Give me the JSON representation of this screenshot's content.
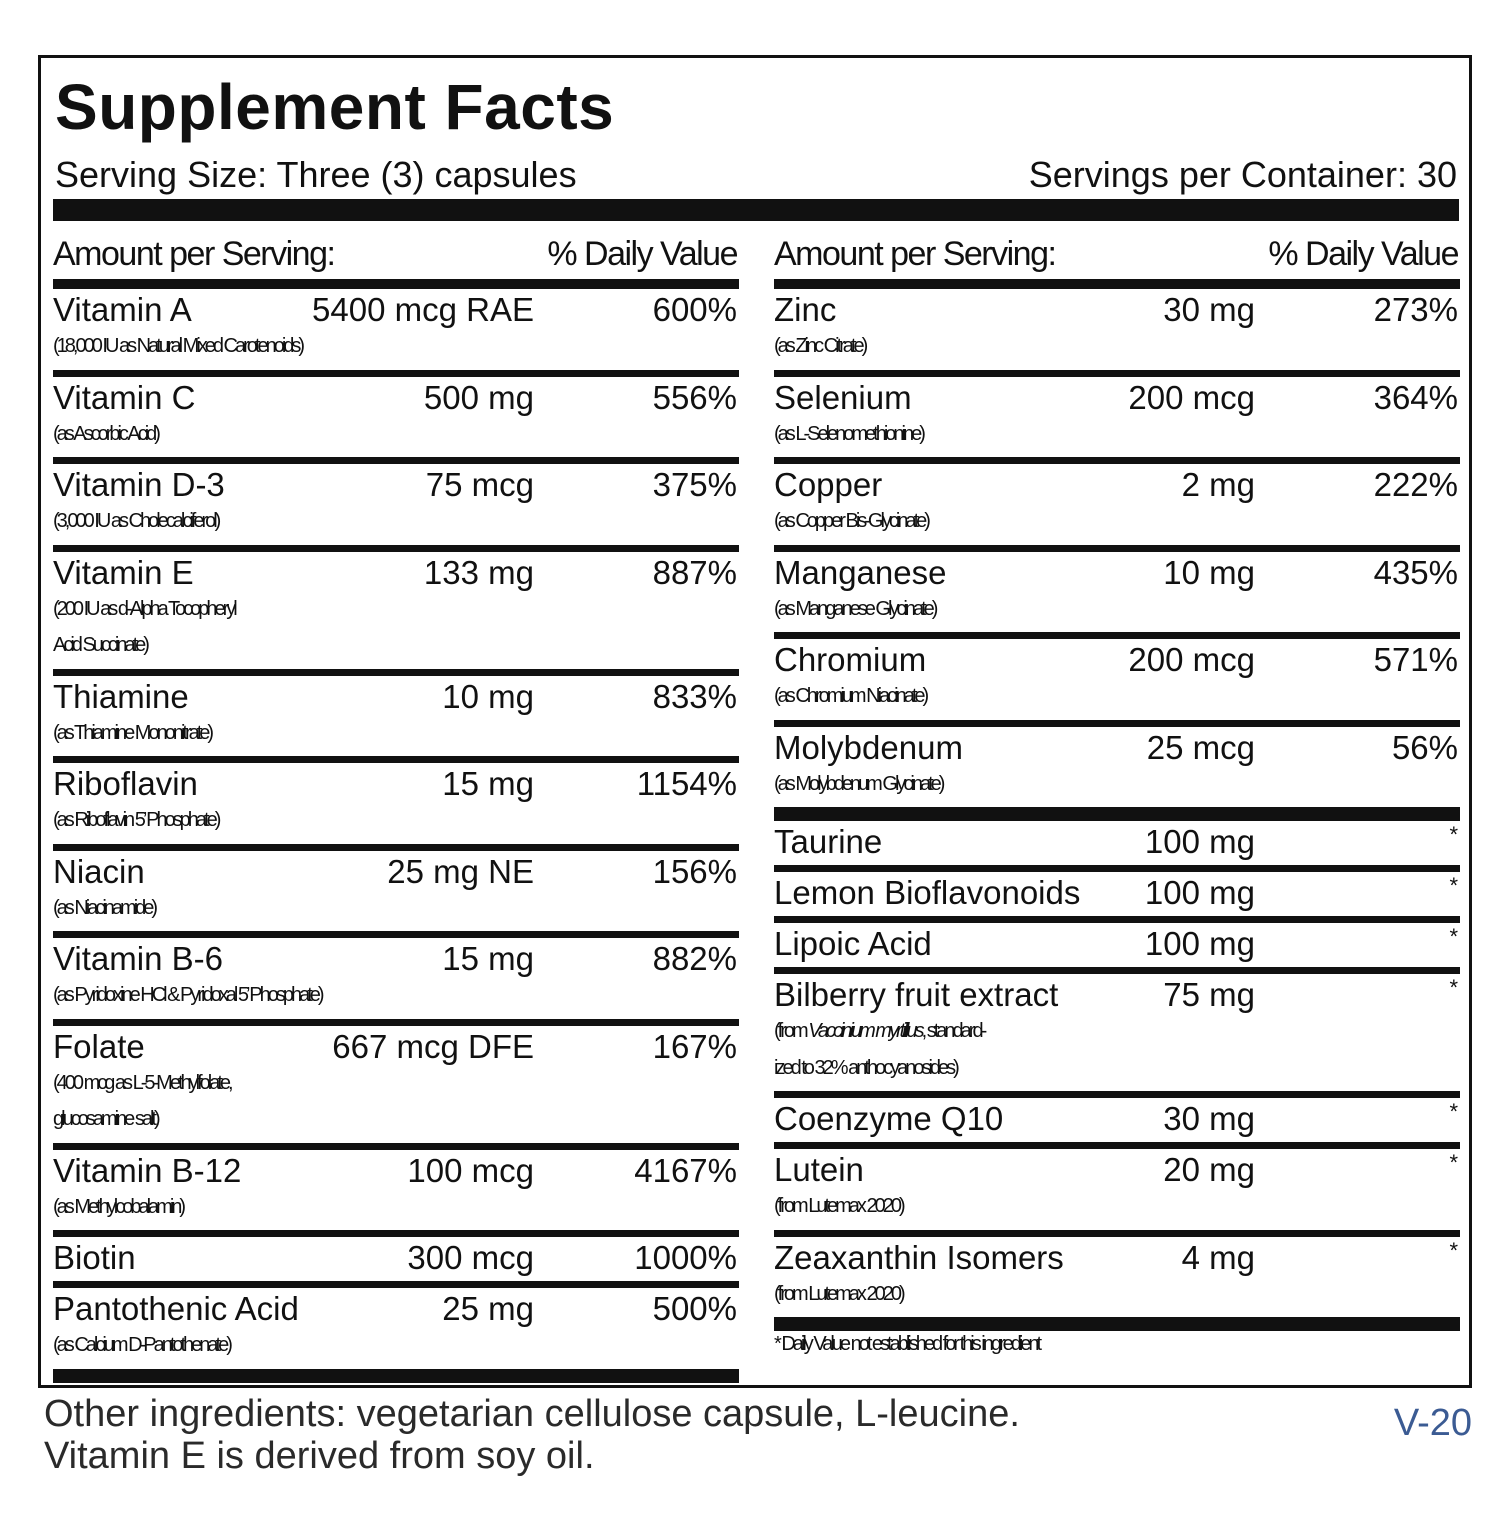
{
  "title": "Supplement Facts",
  "serving_size": "Serving Size: Three (3) capsules",
  "servings_per_container": "Servings per Container: 30",
  "columns": [
    {
      "header": {
        "amount": "Amount per Serving:",
        "dv": "% Daily Value"
      },
      "groups": [
        {
          "rows": [
            {
              "name": "Vitamin A",
              "amount": "5400 mcg RAE",
              "dv": "600%",
              "detail": [
                "(18,000 IU as Natural Mixed Carotenoids)"
              ]
            },
            {
              "name": "Vitamin C",
              "amount": "500 mg",
              "dv": "556%",
              "detail": [
                "(as Ascorbic Acid)"
              ]
            },
            {
              "name": "Vitamin D-3",
              "amount": "75 mcg",
              "dv": "375%",
              "detail": [
                "(3,000 IU as Cholecalciferol)"
              ]
            },
            {
              "name": "Vitamin E",
              "amount": "133 mg",
              "dv": "887%",
              "detail": [
                "(200 IU as d-Alpha Tocopheryl",
                "Acid Succinate)"
              ]
            },
            {
              "name": "Thiamine",
              "amount": "10 mg",
              "dv": "833%",
              "detail": [
                "(as Thiamine Mononitrate)"
              ]
            },
            {
              "name": "Riboflavin",
              "amount": "15 mg",
              "dv": "1154%",
              "detail": [
                "(as Riboflavin 5’ Phosphate)"
              ]
            },
            {
              "name": "Niacin",
              "amount": "25 mg NE",
              "dv": "156%",
              "detail": [
                "(as Niacinamide)"
              ]
            },
            {
              "name": "Vitamin B-6",
              "amount": "15 mg",
              "dv": "882%",
              "detail": [
                "(as Pyridoxine HCl & Pyridoxal 5’ Phosphate)"
              ]
            },
            {
              "name": "Folate",
              "amount": "667 mcg DFE",
              "dv": "167%",
              "detail": [
                "(400 mcg as L-5-Methylfolate,",
                "glucosamine salt)"
              ]
            },
            {
              "name": "Vitamin B-12",
              "amount": "100 mcg",
              "dv": "4167%",
              "detail": [
                "(as Methylcobalamin)"
              ]
            },
            {
              "name": "Biotin",
              "amount": "300 mcg",
              "dv": "1000%"
            },
            {
              "name": "Pantothenic Acid",
              "amount": "25 mg",
              "dv": "500%",
              "detail": [
                "(as Calcium D-Pantothenate)"
              ]
            }
          ]
        }
      ]
    },
    {
      "header": {
        "amount": "Amount per Serving:",
        "dv": "% Daily Value"
      },
      "groups": [
        {
          "rows": [
            {
              "name": "Zinc",
              "amount": "30 mg",
              "dv": "273%",
              "detail": [
                "(as Zinc Citrate)"
              ]
            },
            {
              "name": "Selenium",
              "amount": "200 mcg",
              "dv": "364%",
              "detail": [
                "(as L-Selenomethionine)"
              ]
            },
            {
              "name": "Copper",
              "amount": "2 mg",
              "dv": "222%",
              "detail": [
                "(as Copper Bis-Glycinate)"
              ]
            },
            {
              "name": "Manganese",
              "amount": "10 mg",
              "dv": "435%",
              "detail": [
                "(as Manganese Glycinate)"
              ]
            },
            {
              "name": "Chromium",
              "amount": "200 mcg",
              "dv": "571%",
              "detail": [
                "(as Chromium Niacinate)"
              ]
            },
            {
              "name": "Molybdenum",
              "amount": "25 mcg",
              "dv": "56%",
              "detail": [
                "(as Molybdenum Glycinate)"
              ]
            }
          ]
        },
        {
          "rows": [
            {
              "name": "Taurine",
              "amount": "100 mg",
              "dv": "*"
            },
            {
              "name": "Lemon Bioflavonoids",
              "amount": "100 mg",
              "dv": "*"
            },
            {
              "name": "Lipoic Acid",
              "amount": "100 mg",
              "dv": "*"
            },
            {
              "name": "Bilberry fruit extract",
              "amount": "75 mg",
              "dv": "*",
              "detail": [
                [
                  "(from ",
                  {
                    "text": "Vaccinium myrtillus",
                    "italic": true
                  },
                  ", standard-"
                ],
                "ized to 32% anthocyanosides)"
              ]
            },
            {
              "name": "Coenzyme Q10",
              "amount": "30 mg",
              "dv": "*"
            },
            {
              "name": "Lutein",
              "amount": "20 mg",
              "dv": "*",
              "detail": [
                "(from Lutemax 2020)"
              ]
            },
            {
              "name": "Zeaxanthin Isomers",
              "amount": "4 mg",
              "dv": "*",
              "detail": [
                "(from Lutemax 2020)"
              ]
            }
          ]
        }
      ],
      "footnote": "* Daily Value not established for this ingredient"
    }
  ],
  "other_ingredients": [
    "Other ingredients: vegetarian cellulose capsule, L-leucine.",
    "Vitamin E is derived from soy oil."
  ],
  "code": "V-20"
}
